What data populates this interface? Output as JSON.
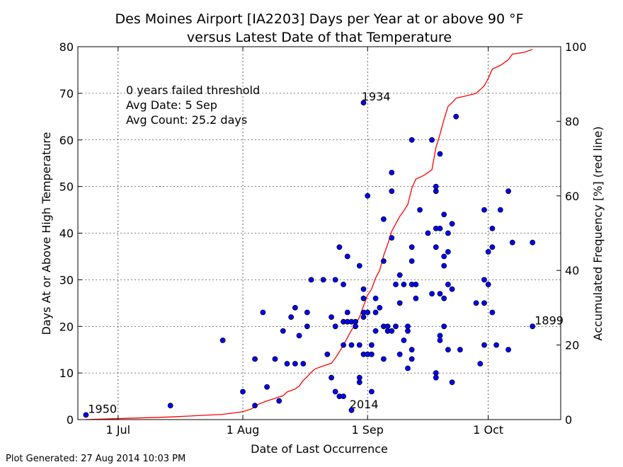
{
  "footer": "Plot Generated: 27 Aug 2014 10:03 PM",
  "chart_data": {
    "type": "scatter",
    "title_line1": "Des Moines Airport [IA2203] Days per Year at or above 90 °F",
    "title_line2": "versus Latest Date of that Temperature",
    "xlabel": "Date of Last Occurrence",
    "ylabel": "Days At or Above High Temperature",
    "y2label": "Accumulated Frequency [%] (red line)",
    "xlim": [
      "2014-06-21",
      "2014-10-19"
    ],
    "ylim": [
      0,
      80
    ],
    "y2lim": [
      0,
      100
    ],
    "grid": true,
    "x_ticks": [
      {
        "date": "2014-07-01",
        "label": "1 Jul"
      },
      {
        "date": "2014-08-01",
        "label": "1 Aug"
      },
      {
        "date": "2014-09-01",
        "label": "1 Sep"
      },
      {
        "date": "2014-10-01",
        "label": "1 Oct"
      }
    ],
    "y_ticks": [
      0,
      10,
      20,
      30,
      40,
      50,
      60,
      70,
      80
    ],
    "y2_ticks": [
      0,
      20,
      40,
      60,
      80,
      100
    ],
    "annotations": [
      {
        "date": "2014-06-23",
        "y": 1,
        "label": "1950"
      },
      {
        "date": "2014-08-30",
        "y": 68,
        "label": "1934"
      },
      {
        "date": "2014-08-27",
        "y": 2,
        "label": "2014"
      },
      {
        "date": "2014-10-12",
        "y": 20,
        "label": "1899"
      }
    ],
    "stats": [
      "0 years failed threshold",
      "Avg Date: 5 Sep",
      "Avg Count: 25.2 days"
    ],
    "colors": {
      "points": "#0000ff",
      "line": "#ff0000"
    },
    "points": [
      [
        "2014-06-23",
        1
      ],
      [
        "2014-07-14",
        3
      ],
      [
        "2014-07-27",
        17
      ],
      [
        "2014-08-01",
        6
      ],
      [
        "2014-08-04",
        3
      ],
      [
        "2014-08-04",
        13
      ],
      [
        "2014-08-06",
        23
      ],
      [
        "2014-08-07",
        7
      ],
      [
        "2014-08-09",
        13
      ],
      [
        "2014-08-10",
        4
      ],
      [
        "2014-08-11",
        19
      ],
      [
        "2014-08-12",
        12
      ],
      [
        "2014-08-13",
        22
      ],
      [
        "2014-08-14",
        24
      ],
      [
        "2014-08-14",
        12
      ],
      [
        "2014-08-15",
        18
      ],
      [
        "2014-08-16",
        12
      ],
      [
        "2014-08-17",
        23
      ],
      [
        "2014-08-17",
        20
      ],
      [
        "2014-08-18",
        30
      ],
      [
        "2014-08-21",
        30
      ],
      [
        "2014-08-22",
        14
      ],
      [
        "2014-08-23",
        22
      ],
      [
        "2014-08-23",
        9
      ],
      [
        "2014-08-24",
        30
      ],
      [
        "2014-08-24",
        6
      ],
      [
        "2014-08-24",
        20
      ],
      [
        "2014-08-25",
        37
      ],
      [
        "2014-08-25",
        5
      ],
      [
        "2014-08-26",
        29
      ],
      [
        "2014-08-26",
        21
      ],
      [
        "2014-08-26",
        16
      ],
      [
        "2014-08-26",
        5
      ],
      [
        "2014-08-27",
        35
      ],
      [
        "2014-08-27",
        23
      ],
      [
        "2014-08-27",
        21
      ],
      [
        "2014-08-28",
        21
      ],
      [
        "2014-08-28",
        16
      ],
      [
        "2014-08-28",
        2
      ],
      [
        "2014-08-29",
        20
      ],
      [
        "2014-08-29",
        21
      ],
      [
        "2014-08-30",
        16
      ],
      [
        "2014-08-30",
        9
      ],
      [
        "2014-08-30",
        8
      ],
      [
        "2014-08-30",
        33
      ],
      [
        "2014-08-31",
        23
      ],
      [
        "2014-08-31",
        26
      ],
      [
        "2014-08-31",
        28
      ],
      [
        "2014-08-31",
        22
      ],
      [
        "2014-08-31",
        14
      ],
      [
        "2014-08-31",
        68
      ],
      [
        "2014-09-01",
        48
      ],
      [
        "2014-09-01",
        23
      ],
      [
        "2014-09-01",
        14
      ],
      [
        "2014-09-02",
        16
      ],
      [
        "2014-09-02",
        6
      ],
      [
        "2014-09-02",
        14
      ],
      [
        "2014-09-03",
        26
      ],
      [
        "2014-09-03",
        23
      ],
      [
        "2014-09-03",
        19
      ],
      [
        "2014-09-04",
        24
      ],
      [
        "2014-09-05",
        43
      ],
      [
        "2014-09-05",
        34
      ],
      [
        "2014-09-05",
        20
      ],
      [
        "2014-09-05",
        13
      ],
      [
        "2014-09-06",
        20
      ],
      [
        "2014-09-06",
        19
      ],
      [
        "2014-09-07",
        39
      ],
      [
        "2014-09-07",
        49
      ],
      [
        "2014-09-07",
        53
      ],
      [
        "2014-09-07",
        19
      ],
      [
        "2014-09-08",
        29
      ],
      [
        "2014-09-08",
        20
      ],
      [
        "2014-09-09",
        31
      ],
      [
        "2014-09-09",
        25
      ],
      [
        "2014-09-09",
        14
      ],
      [
        "2014-09-10",
        29
      ],
      [
        "2014-09-10",
        17
      ],
      [
        "2014-09-11",
        20
      ],
      [
        "2014-09-11",
        19
      ],
      [
        "2014-09-11",
        11
      ],
      [
        "2014-09-12",
        29
      ],
      [
        "2014-09-12",
        13
      ],
      [
        "2014-09-12",
        15
      ],
      [
        "2014-09-12",
        60
      ],
      [
        "2014-09-12",
        37
      ],
      [
        "2014-09-12",
        34
      ],
      [
        "2014-09-13",
        29
      ],
      [
        "2014-09-13",
        26
      ],
      [
        "2014-09-14",
        45
      ],
      [
        "2014-09-16",
        40
      ],
      [
        "2014-09-17",
        27
      ],
      [
        "2014-09-17",
        60
      ],
      [
        "2014-09-18",
        9
      ],
      [
        "2014-09-18",
        10
      ],
      [
        "2014-09-18",
        50
      ],
      [
        "2014-09-18",
        49
      ],
      [
        "2014-09-18",
        41
      ],
      [
        "2014-09-18",
        37
      ],
      [
        "2014-09-19",
        57
      ],
      [
        "2014-09-19",
        41
      ],
      [
        "2014-09-19",
        27
      ],
      [
        "2014-09-19",
        18
      ],
      [
        "2014-09-19",
        17
      ],
      [
        "2014-09-20",
        44
      ],
      [
        "2014-09-20",
        35
      ],
      [
        "2014-09-20",
        33
      ],
      [
        "2014-09-20",
        20
      ],
      [
        "2014-09-20",
        26
      ],
      [
        "2014-09-21",
        36
      ],
      [
        "2014-09-21",
        40
      ],
      [
        "2014-09-21",
        29
      ],
      [
        "2014-09-21",
        15
      ],
      [
        "2014-09-22",
        42
      ],
      [
        "2014-09-22",
        28
      ],
      [
        "2014-09-22",
        8
      ],
      [
        "2014-09-23",
        65
      ],
      [
        "2014-09-24",
        15
      ],
      [
        "2014-09-28",
        25
      ],
      [
        "2014-09-29",
        12
      ],
      [
        "2014-09-30",
        45
      ],
      [
        "2014-09-30",
        30
      ],
      [
        "2014-09-30",
        25
      ],
      [
        "2014-09-30",
        16
      ],
      [
        "2014-10-01",
        36
      ],
      [
        "2014-10-01",
        29
      ],
      [
        "2014-10-02",
        41
      ],
      [
        "2014-10-02",
        37
      ],
      [
        "2014-10-02",
        23
      ],
      [
        "2014-10-03",
        16
      ],
      [
        "2014-10-04",
        45
      ],
      [
        "2014-10-06",
        49
      ],
      [
        "2014-10-06",
        15
      ],
      [
        "2014-10-07",
        38
      ],
      [
        "2014-10-12",
        38
      ],
      [
        "2014-10-12",
        20
      ]
    ],
    "cumulative_line": [
      [
        "2014-06-23",
        0
      ],
      [
        "2014-07-14",
        0.7
      ],
      [
        "2014-07-27",
        1.4
      ],
      [
        "2014-08-01",
        2.1
      ],
      [
        "2014-08-03",
        2.8
      ],
      [
        "2014-08-04",
        3.5
      ],
      [
        "2014-08-05",
        4.2
      ],
      [
        "2014-08-07",
        5.0
      ],
      [
        "2014-08-09",
        5.7
      ],
      [
        "2014-08-11",
        6.4
      ],
      [
        "2014-08-12",
        7.4
      ],
      [
        "2014-08-14",
        8.2
      ],
      [
        "2014-08-15",
        9.0
      ],
      [
        "2014-08-16",
        10.5
      ],
      [
        "2014-08-17",
        11.5
      ],
      [
        "2014-08-18",
        12.7
      ],
      [
        "2014-08-19",
        13.6
      ],
      [
        "2014-08-21",
        14.4
      ],
      [
        "2014-08-23",
        15.1
      ],
      [
        "2014-08-24",
        16.5
      ],
      [
        "2014-08-25",
        18.2
      ],
      [
        "2014-08-26",
        20.0
      ],
      [
        "2014-08-27",
        22.0
      ],
      [
        "2014-08-28",
        24.0
      ],
      [
        "2014-08-29",
        25.5
      ],
      [
        "2014-08-30",
        27.5
      ],
      [
        "2014-08-31",
        30.5
      ],
      [
        "2014-09-01",
        33.4
      ],
      [
        "2014-09-02",
        35.0
      ],
      [
        "2014-09-03",
        38.0
      ],
      [
        "2014-09-04",
        40.0
      ],
      [
        "2014-09-05",
        44.0
      ],
      [
        "2014-09-06",
        47.0
      ],
      [
        "2014-09-07",
        50.5
      ],
      [
        "2014-09-08",
        52.5
      ],
      [
        "2014-09-09",
        54.5
      ],
      [
        "2014-09-10",
        56.0
      ],
      [
        "2014-09-11",
        57.7
      ],
      [
        "2014-09-12",
        62.0
      ],
      [
        "2014-09-13",
        64.5
      ],
      [
        "2014-09-15",
        65.5
      ],
      [
        "2014-09-17",
        67.0
      ],
      [
        "2014-09-18",
        73.0
      ],
      [
        "2014-09-19",
        76.5
      ],
      [
        "2014-09-20",
        80.5
      ],
      [
        "2014-09-21",
        84.0
      ],
      [
        "2014-09-22",
        85.0
      ],
      [
        "2014-09-23",
        86.2
      ],
      [
        "2014-09-25",
        86.7
      ],
      [
        "2014-09-28",
        87.5
      ],
      [
        "2014-09-30",
        89.5
      ],
      [
        "2014-10-01",
        91.5
      ],
      [
        "2014-10-02",
        94.0
      ],
      [
        "2014-10-04",
        95.0
      ],
      [
        "2014-10-06",
        96.5
      ],
      [
        "2014-10-07",
        98.0
      ],
      [
        "2014-10-10",
        98.5
      ],
      [
        "2014-10-12",
        99.3
      ]
    ]
  }
}
